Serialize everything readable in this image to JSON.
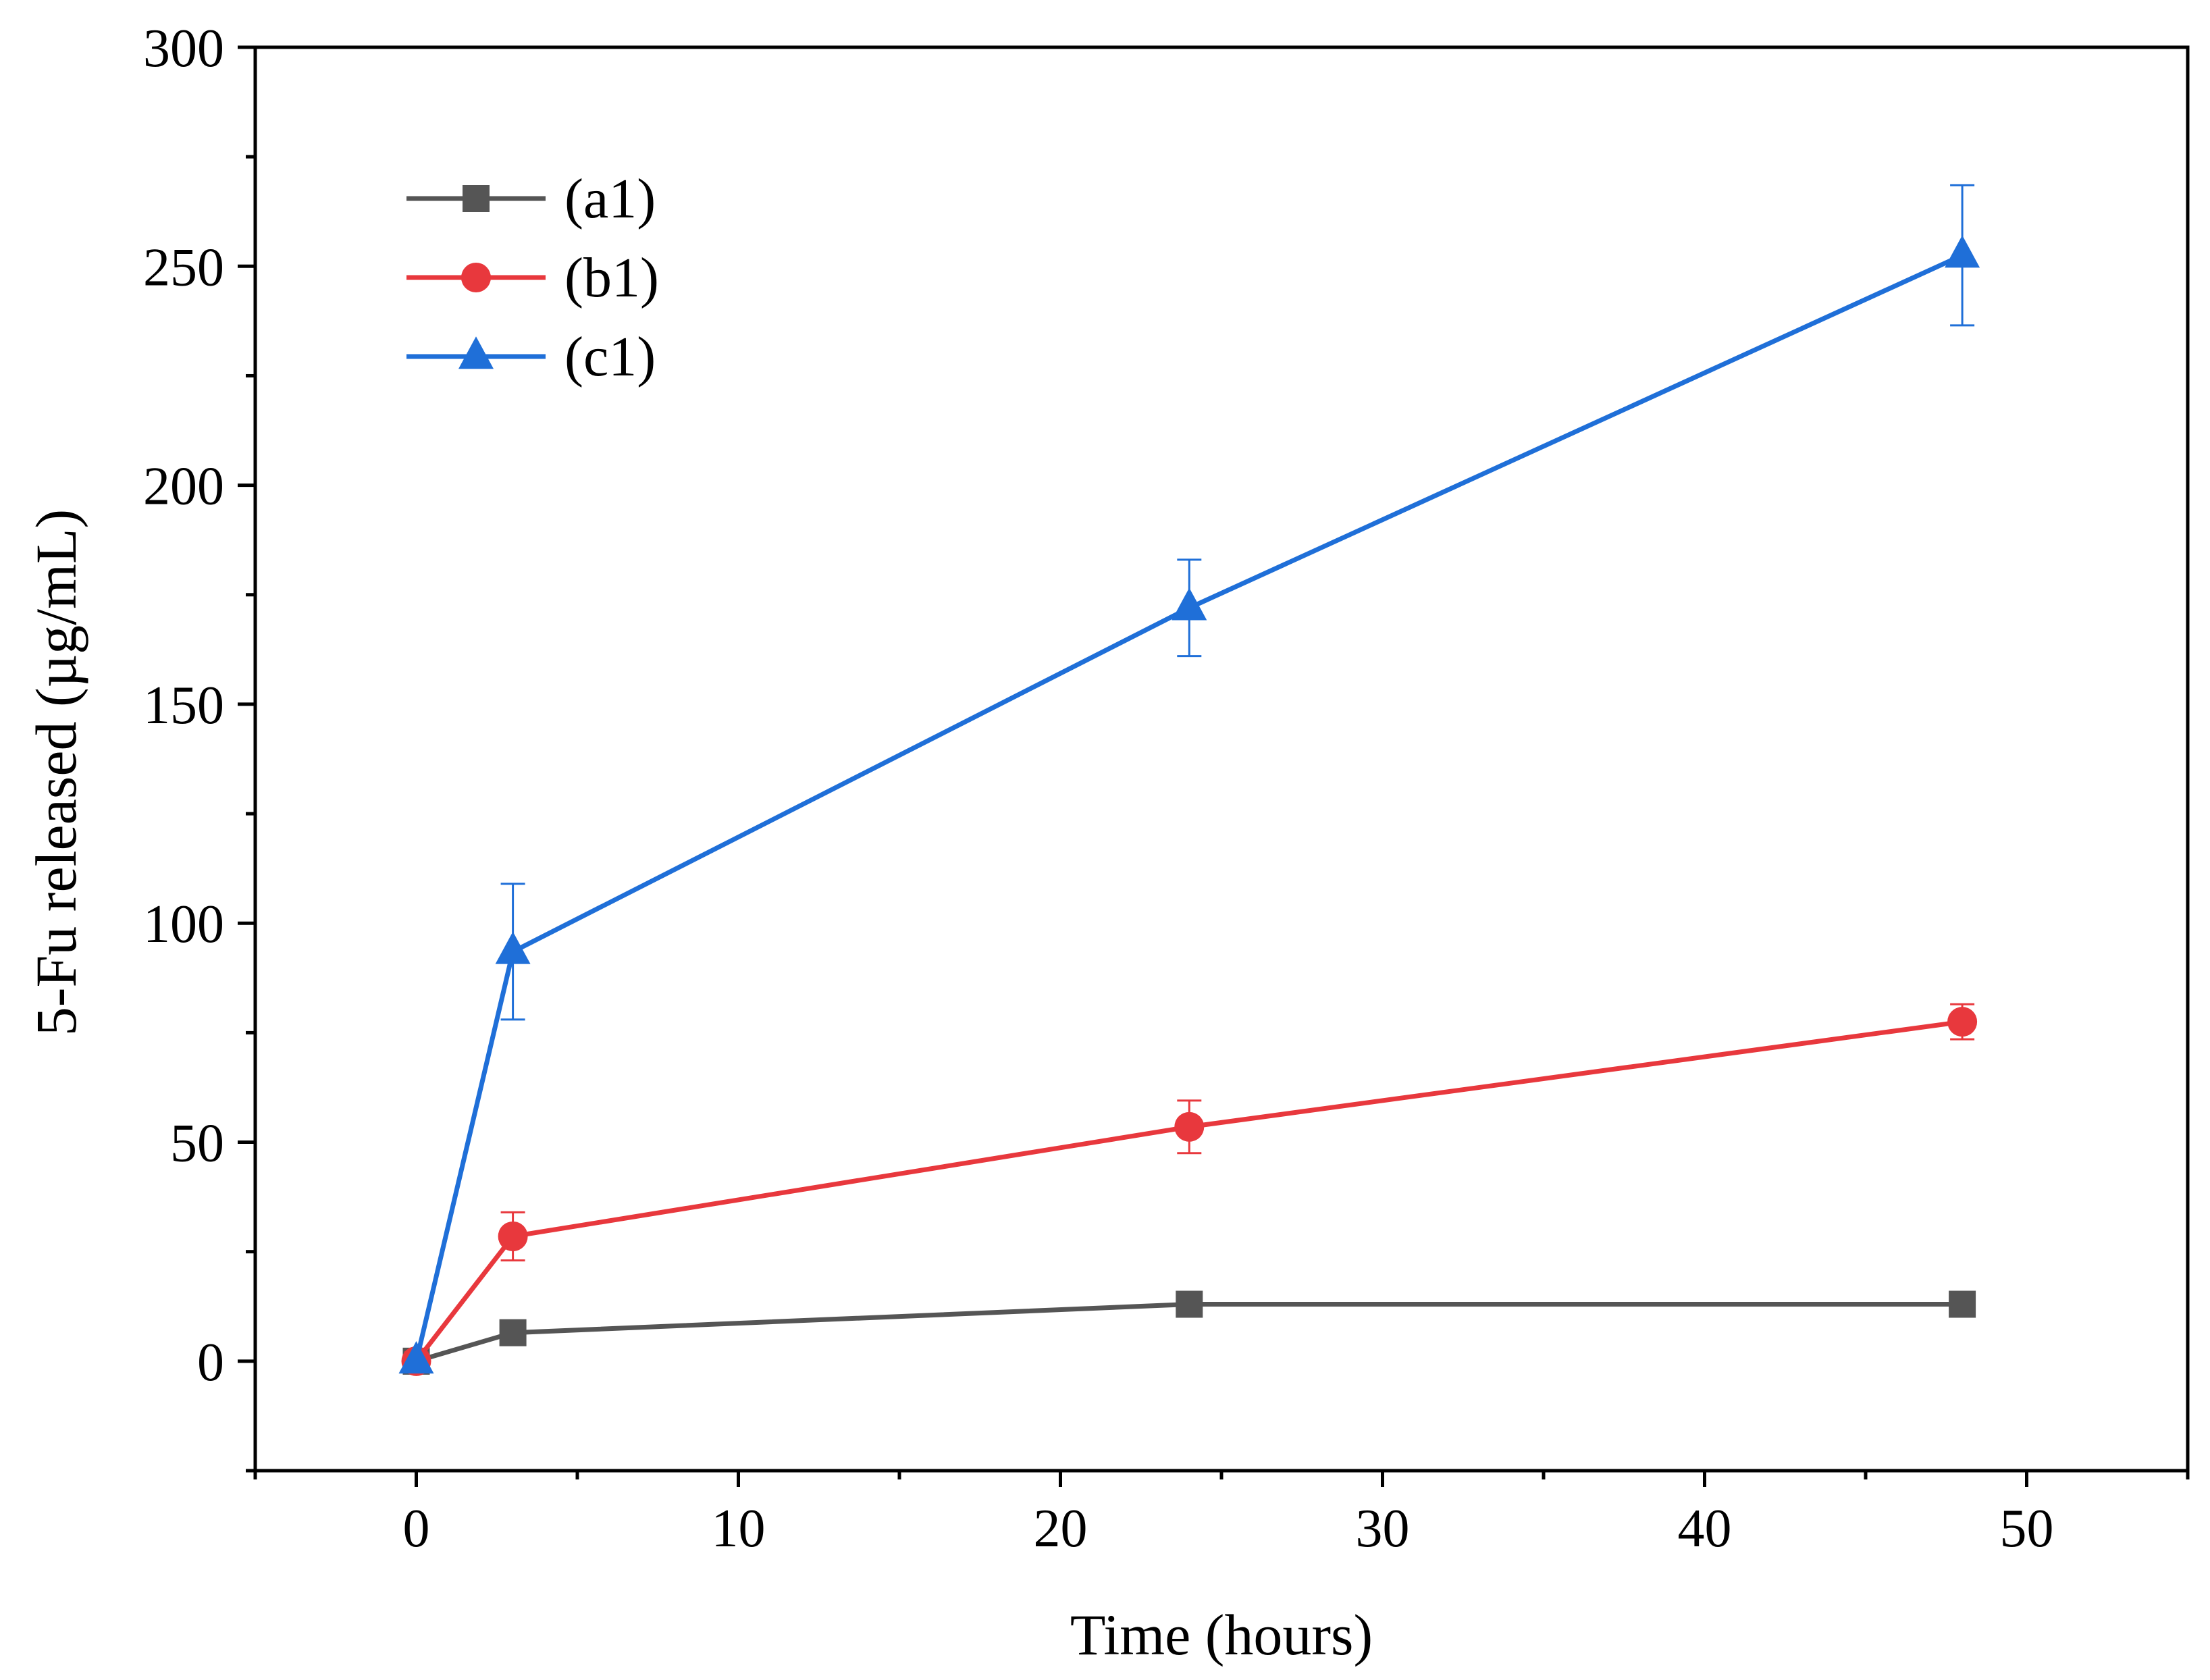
{
  "chart_data": {
    "type": "line",
    "title": "",
    "xlabel": "Time (hours)",
    "ylabel": "5-Fu released (µg/mL)",
    "xlim": [
      -5,
      55
    ],
    "ylim": [
      -25,
      300
    ],
    "xticks": [
      0,
      10,
      20,
      30,
      40,
      50
    ],
    "yticks": [
      0,
      50,
      100,
      150,
      200,
      250,
      300
    ],
    "xtick_labels": [
      "0",
      "10",
      "20",
      "30",
      "40",
      "50"
    ],
    "ytick_labels": [
      "0",
      "50",
      "100",
      "150",
      "200",
      "250",
      "300"
    ],
    "grid": false,
    "legend_position": "top-left",
    "x": [
      0,
      3,
      24,
      48
    ],
    "series": [
      {
        "name": "(a1)",
        "color": "#555555",
        "marker": "square",
        "values": [
          0,
          6.5,
          13,
          13
        ],
        "errors": [
          0,
          0,
          0,
          0
        ]
      },
      {
        "name": "(b1)",
        "color": "#e8383d",
        "marker": "circle",
        "values": [
          0,
          28.5,
          53.5,
          77.5
        ],
        "errors": [
          2,
          5.5,
          6,
          4
        ]
      },
      {
        "name": "(c1)",
        "color": "#1f6fd8",
        "marker": "triangle",
        "values": [
          0,
          93.5,
          172,
          252.5
        ],
        "errors": [
          0,
          15.5,
          11,
          16
        ]
      }
    ]
  }
}
